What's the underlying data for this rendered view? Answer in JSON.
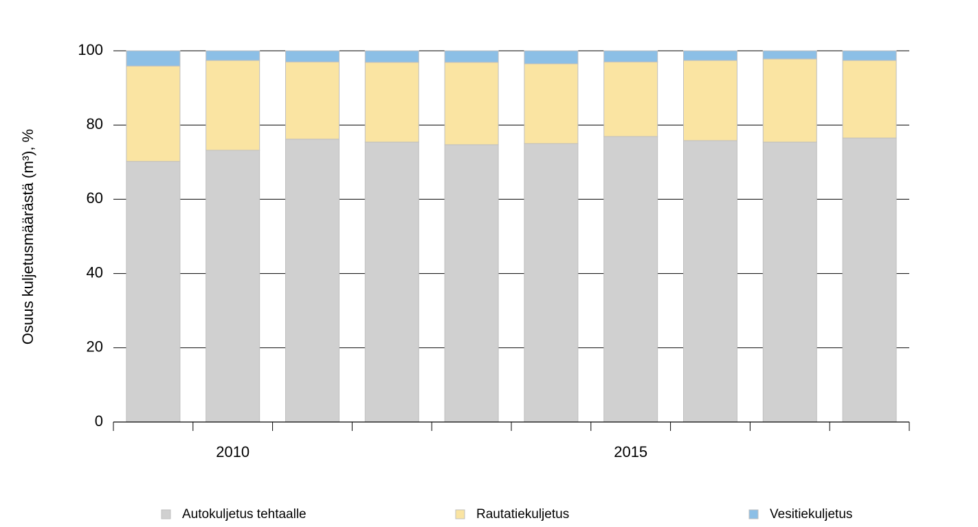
{
  "chart_data": {
    "type": "stacked-bar",
    "y_label": "Osuus kuljetusmäärästä (m³), %",
    "categories": [
      null,
      "2010",
      null,
      null,
      null,
      null,
      "2015",
      null,
      null,
      null
    ],
    "series": [
      {
        "name": "Autokuljetus tehtaalle",
        "color": "#d0d0d0",
        "values": [
          70.2,
          73.2,
          76.2,
          75.4,
          74.7,
          75.0,
          76.9,
          75.8,
          75.4,
          76.5
        ]
      },
      {
        "name": "Rautatiekuljetus",
        "color": "#fae4a2",
        "values": [
          25.7,
          24.2,
          20.8,
          21.5,
          22.2,
          21.5,
          20.1,
          21.6,
          22.4,
          20.9
        ]
      },
      {
        "name": "Vesitiekuljetus",
        "color": "#8cbfe6",
        "values": [
          4.1,
          2.6,
          3.0,
          3.1,
          3.1,
          3.5,
          3.0,
          2.6,
          2.2,
          2.6
        ]
      }
    ],
    "ylim": [
      0,
      100
    ],
    "yticks": [
      0,
      20,
      40,
      60,
      80,
      100
    ],
    "grid": true,
    "legend": "bottom"
  }
}
